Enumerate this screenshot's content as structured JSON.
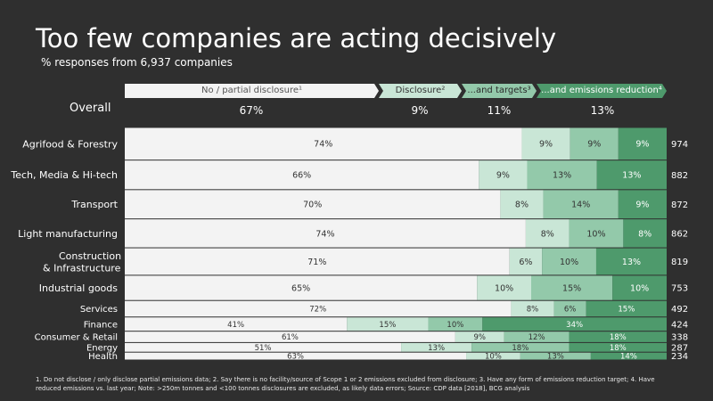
{
  "title": "Too few companies are acting decisively",
  "subtitle": "% responses from 6,937 companies",
  "legend": [
    {
      "label": "No / partial disclosure¹",
      "color": "#f3f3f3",
      "text_color": "#555555"
    },
    {
      "label": "Disclosure²",
      "color": "#c9e6d6",
      "text_color": "#333333"
    },
    {
      "label": "...and targets³",
      "color": "#93c9aa",
      "text_color": "#2a2a2a"
    },
    {
      "label": "...and emissions reduction⁴",
      "color": "#4e9a6c",
      "text_color": "#ffffff"
    }
  ],
  "overall": {
    "label": "Overall",
    "values": [
      "67%",
      "9%",
      "11%",
      "13%"
    ]
  },
  "footnote": "1. Do not disclose / only disclose partial emissions data; 2. Say there is no facility/source of Scope 1 or 2 emissions excluded from disclosure; 3. Have any form of emissions reduction target; 4. Have reduced emissions vs. last year; Note: >250m tonnes and <100 tonnes disclosures are excluded, as likely data errors; Source: CDP data [2018], BCG analysis",
  "chart_data": {
    "type": "bar",
    "orientation": "horizontal",
    "stacked": true,
    "variable_width": true,
    "categories": [
      "Agrifood & Forestry",
      "Tech, Media & Hi-tech",
      "Transport",
      "Light manufacturing",
      "Construction & Infrastructure",
      "Industrial goods",
      "Services",
      "Finance",
      "Consumer & Retail",
      "Energy",
      "Health"
    ],
    "counts": [
      974,
      882,
      872,
      862,
      819,
      753,
      492,
      424,
      338,
      287,
      234
    ],
    "series": [
      {
        "name": "No / partial disclosure",
        "values": [
          74,
          66,
          70,
          74,
          71,
          65,
          72,
          41,
          61,
          51,
          63
        ]
      },
      {
        "name": "Disclosure",
        "values": [
          9,
          9,
          8,
          8,
          6,
          10,
          8,
          15,
          9,
          13,
          10
        ]
      },
      {
        "name": "...and targets",
        "values": [
          9,
          13,
          14,
          10,
          10,
          15,
          6,
          10,
          12,
          18,
          13
        ]
      },
      {
        "name": "...and emissions reduction",
        "values": [
          9,
          13,
          9,
          8,
          13,
          10,
          15,
          34,
          18,
          18,
          14
        ]
      }
    ],
    "labels": [
      [
        "74%",
        "9%",
        "9%",
        "9%"
      ],
      [
        "66%",
        "9%",
        "13%",
        "13%"
      ],
      [
        "70%",
        "8%",
        "14%",
        "9%"
      ],
      [
        "74%",
        "8%",
        "10%",
        "8%"
      ],
      [
        "71%",
        "6%",
        "10%",
        "13%"
      ],
      [
        "65%",
        "10%",
        "15%",
        "10%"
      ],
      [
        "72%",
        "8%",
        "6%",
        "15%"
      ],
      [
        "41%",
        "15%",
        "10%",
        "34%"
      ],
      [
        "61%",
        "9%",
        "12%",
        "18%"
      ],
      [
        "51%",
        "13%",
        "18%",
        "18%"
      ],
      [
        "63%",
        "10%",
        "13%",
        "14%"
      ]
    ],
    "colors": [
      "#f3f3f3",
      "#c9e6d6",
      "#93c9aa",
      "#4e9a6c"
    ]
  }
}
